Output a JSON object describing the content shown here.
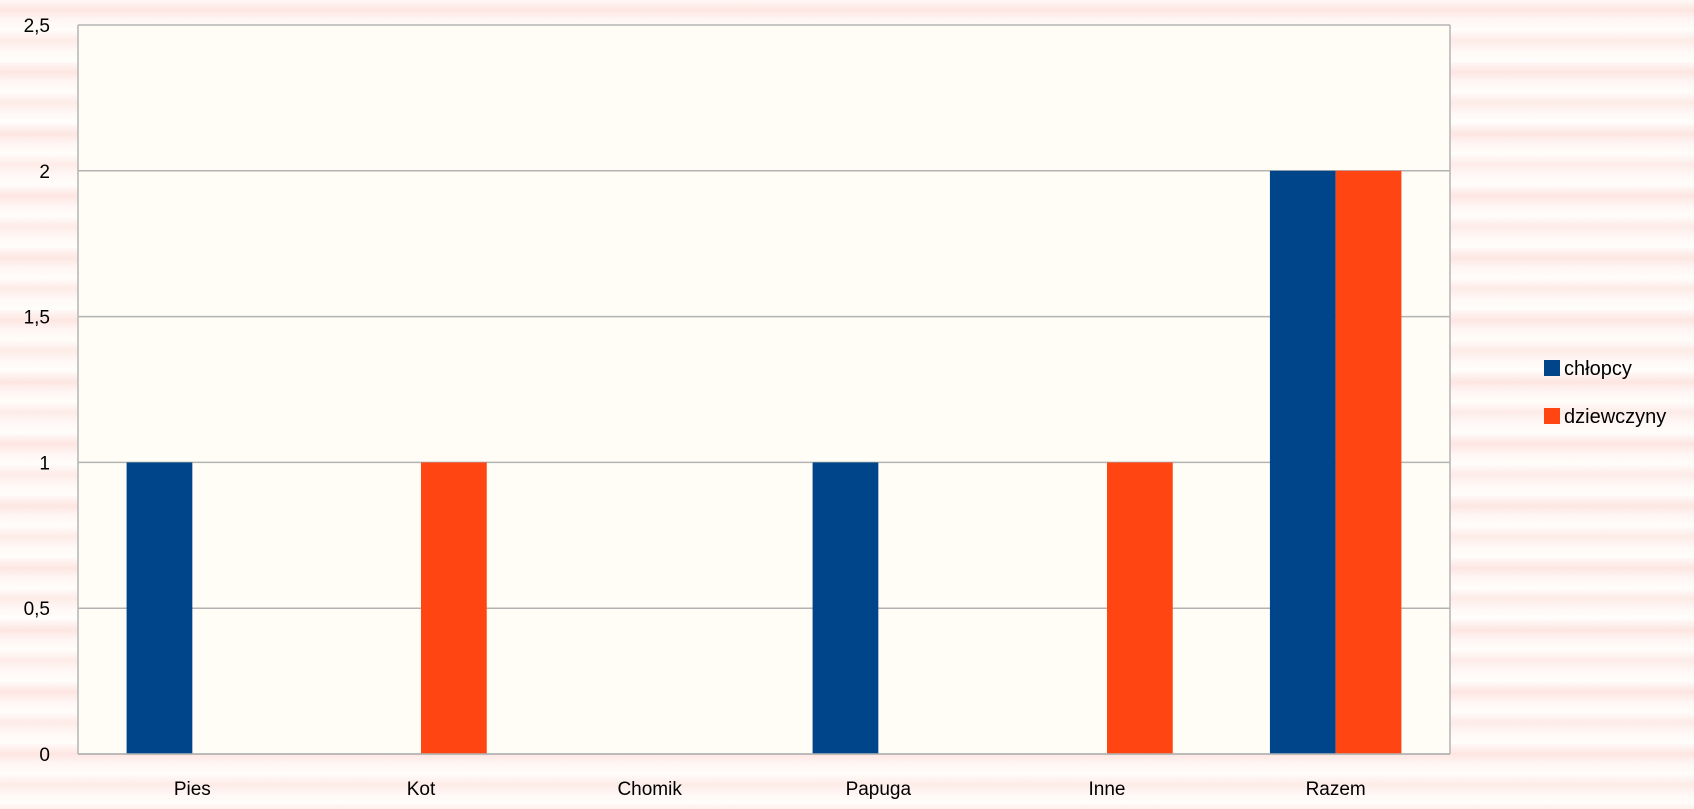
{
  "chart_data": {
    "type": "bar",
    "title": "",
    "xlabel": "",
    "ylabel": "",
    "categories": [
      "Pies",
      "Kot",
      "Chomik",
      "Papuga",
      "Inne",
      "Razem"
    ],
    "series": [
      {
        "name": "chłopcy",
        "color": "#00458a",
        "values": [
          1,
          0,
          0,
          1,
          0,
          2
        ]
      },
      {
        "name": "dziewczyny",
        "color": "#ff4512",
        "values": [
          0,
          1,
          0,
          0,
          1,
          2
        ]
      }
    ],
    "ylim": [
      0,
      2.5
    ],
    "yticks": [
      {
        "value": 0,
        "label": "0"
      },
      {
        "value": 0.5,
        "label": "0,5"
      },
      {
        "value": 1,
        "label": "1"
      },
      {
        "value": 1.5,
        "label": "1,5"
      },
      {
        "value": 2,
        "label": "2"
      },
      {
        "value": 2.5,
        "label": "2,5"
      }
    ],
    "grid": true,
    "legend_position": "right",
    "plot_background": "#fffdf6",
    "grid_color": "#b3b3b3"
  }
}
